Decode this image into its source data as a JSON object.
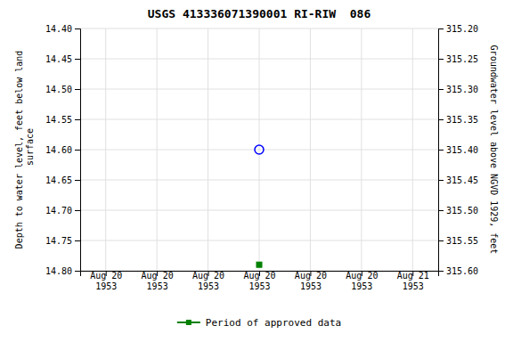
{
  "chart_data": {
    "type": "scatter",
    "title": "USGS 413336071390001 RI-RIW  086",
    "y_label": "Depth to water level, feet below land\n surface",
    "y2_label": "Groundwater level above NGVD 1929, feet",
    "categories": [
      "Aug 20\n1953",
      "Aug 20\n1953",
      "Aug 20\n1953",
      "Aug 20\n1953",
      "Aug 20\n1953",
      "Aug 20\n1953",
      "Aug 21\n1953"
    ],
    "series": [
      {
        "color": "blue",
        "marker": "circle",
        "values": [
          null,
          null,
          null,
          14.6,
          null,
          null,
          null
        ]
      },
      {
        "name": "Period of approved data",
        "color": "green",
        "marker": "square",
        "values": [
          null,
          null,
          null,
          14.79,
          null,
          null,
          null
        ]
      }
    ],
    "ylim": [
      14.8,
      14.4
    ],
    "yticks": [
      {
        "value": 14.4,
        "label": "14.40"
      },
      14.45,
      {
        "value": 14.5,
        "label": "14.50"
      },
      14.55,
      {
        "value": 14.6,
        "label": "14.60"
      },
      14.65,
      {
        "value": 14.7,
        "label": "14.70"
      },
      14.75,
      {
        "value": 14.8,
        "label": "14.80"
      }
    ],
    "y2lim": [
      315.6,
      315.2
    ],
    "y2ticks": [
      {
        "value": 315.6,
        "label": "315.60"
      },
      315.55,
      {
        "value": 315.5,
        "label": "315.50"
      },
      315.45,
      {
        "value": 315.4,
        "label": "315.40"
      },
      315.35,
      {
        "value": 315.3,
        "label": "315.30"
      },
      315.25,
      {
        "value": 315.2,
        "label": "315.20"
      }
    ],
    "grid": true,
    "legend": "bottom"
  }
}
